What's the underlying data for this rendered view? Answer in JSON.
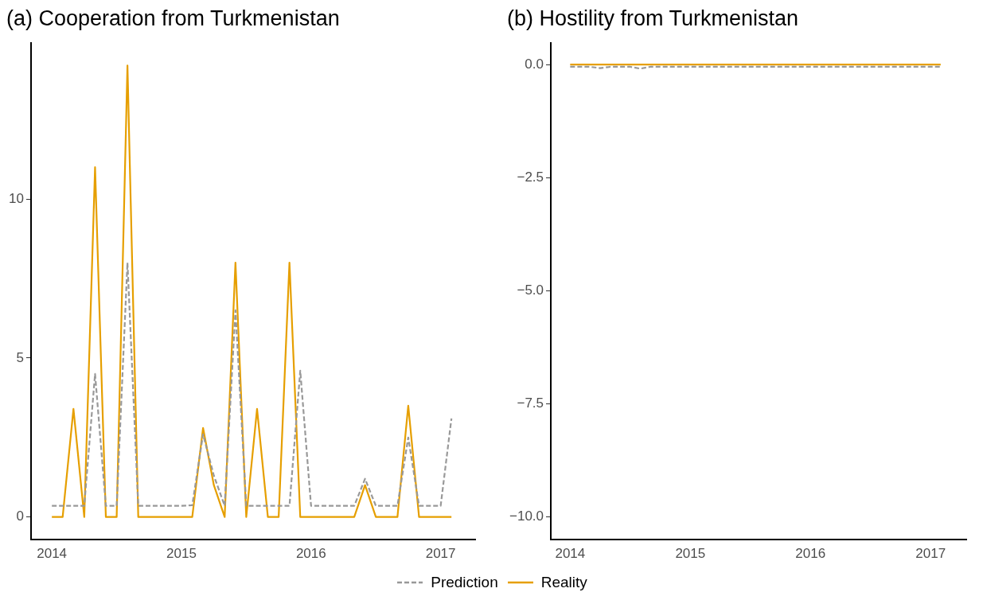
{
  "chart_data": [
    {
      "type": "line",
      "title": "(a) Cooperation from Turkmenistan",
      "x": [
        "2014-01",
        "2014-02",
        "2014-03",
        "2014-04",
        "2014-05",
        "2014-06",
        "2014-07",
        "2014-08",
        "2014-09",
        "2014-10",
        "2014-11",
        "2014-12",
        "2015-01",
        "2015-02",
        "2015-03",
        "2015-04",
        "2015-05",
        "2015-06",
        "2015-07",
        "2015-08",
        "2015-09",
        "2015-10",
        "2015-11",
        "2015-12",
        "2016-01",
        "2016-02",
        "2016-03",
        "2016-04",
        "2016-05",
        "2016-06",
        "2016-07",
        "2016-08",
        "2016-09",
        "2016-10",
        "2016-11",
        "2016-12",
        "2017-01",
        "2017-02"
      ],
      "series": [
        {
          "name": "Prediction",
          "color": "#999999",
          "line_style": "dashed",
          "values": [
            0.35,
            0.35,
            0.35,
            0.35,
            4.5,
            0.35,
            0.35,
            8,
            0.35,
            0.35,
            0.35,
            0.35,
            0.35,
            0.37,
            2.6,
            1.3,
            0.35,
            6.5,
            0.35,
            0.35,
            0.35,
            0.35,
            0.35,
            4.6,
            0.35,
            0.35,
            0.35,
            0.35,
            0.35,
            1.2,
            0.35,
            0.35,
            0.35,
            2.5,
            0.35,
            0.35,
            0.35,
            3.1
          ]
        },
        {
          "name": "Reality",
          "color": "#e69f00",
          "line_style": "solid",
          "values": [
            0,
            0,
            3.4,
            0,
            11,
            0,
            0,
            14.2,
            0,
            0,
            0,
            0,
            0,
            0,
            2.8,
            1,
            0,
            8,
            0,
            3.4,
            0,
            0,
            8,
            0,
            0,
            0,
            0,
            0,
            0,
            1,
            0,
            0,
            0,
            3.5,
            0,
            0,
            0,
            0
          ]
        }
      ],
      "xlim": [
        "2013-11-03",
        "2017-04-07"
      ],
      "xticks": [
        "2014",
        "2015",
        "2016",
        "2017"
      ],
      "ylim": [
        -0.7,
        14.9
      ],
      "yticks": [
        0,
        5,
        10
      ],
      "grid": false,
      "legend": "bottom",
      "marker": "none"
    },
    {
      "type": "line",
      "title": "(b) Hostility from Turkmenistan",
      "x": [
        "2014-01",
        "2014-02",
        "2014-03",
        "2014-04",
        "2014-05",
        "2014-06",
        "2014-07",
        "2014-08",
        "2014-09",
        "2014-10",
        "2014-11",
        "2014-12",
        "2015-01",
        "2015-02",
        "2015-03",
        "2015-04",
        "2015-05",
        "2015-06",
        "2015-07",
        "2015-08",
        "2015-09",
        "2015-10",
        "2015-11",
        "2015-12",
        "2016-01",
        "2016-02",
        "2016-03",
        "2016-04",
        "2016-05",
        "2016-06",
        "2016-07",
        "2016-08",
        "2016-09",
        "2016-10",
        "2016-11",
        "2016-12",
        "2017-01",
        "2017-02"
      ],
      "series": [
        {
          "name": "Prediction",
          "color": "#999999",
          "line_style": "dashed",
          "values": [
            -0.05,
            -0.05,
            -0.05,
            -0.08,
            -0.05,
            -0.05,
            -0.05,
            -0.09,
            -0.05,
            -0.05,
            -0.05,
            -0.05,
            -0.05,
            -0.05,
            -0.05,
            -0.05,
            -0.05,
            -0.05,
            -0.05,
            -0.05,
            -0.05,
            -0.05,
            -0.05,
            -0.05,
            -0.05,
            -0.05,
            -0.05,
            -0.05,
            -0.05,
            -0.05,
            -0.05,
            -0.05,
            -0.05,
            -0.05,
            -0.05,
            -0.05,
            -0.05,
            -0.05
          ]
        },
        {
          "name": "Reality",
          "color": "#e69f00",
          "line_style": "solid",
          "values": [
            0,
            0,
            0,
            0,
            0,
            0,
            0,
            0,
            0,
            0,
            0,
            0,
            0,
            0,
            0,
            0,
            0,
            0,
            0,
            0,
            0,
            0,
            0,
            0,
            0,
            0,
            0,
            0,
            0,
            0,
            0,
            0,
            0,
            0,
            0,
            0,
            0,
            0
          ]
        }
      ],
      "xlim": [
        "2013-11-03",
        "2017-04-18"
      ],
      "xticks": [
        "2014",
        "2015",
        "2016",
        "2017"
      ],
      "ylim": [
        -10.49,
        0.47
      ],
      "yticks": [
        {
          "value": 0,
          "label": "0.0"
        },
        {
          "value": -2.5,
          "label": "−2.5"
        },
        {
          "value": -5,
          "label": "−5.0"
        },
        {
          "value": -7.5,
          "label": "−7.5"
        },
        {
          "value": -10,
          "label": "−10.0"
        }
      ],
      "grid": false,
      "legend": "bottom",
      "marker": "none"
    }
  ]
}
